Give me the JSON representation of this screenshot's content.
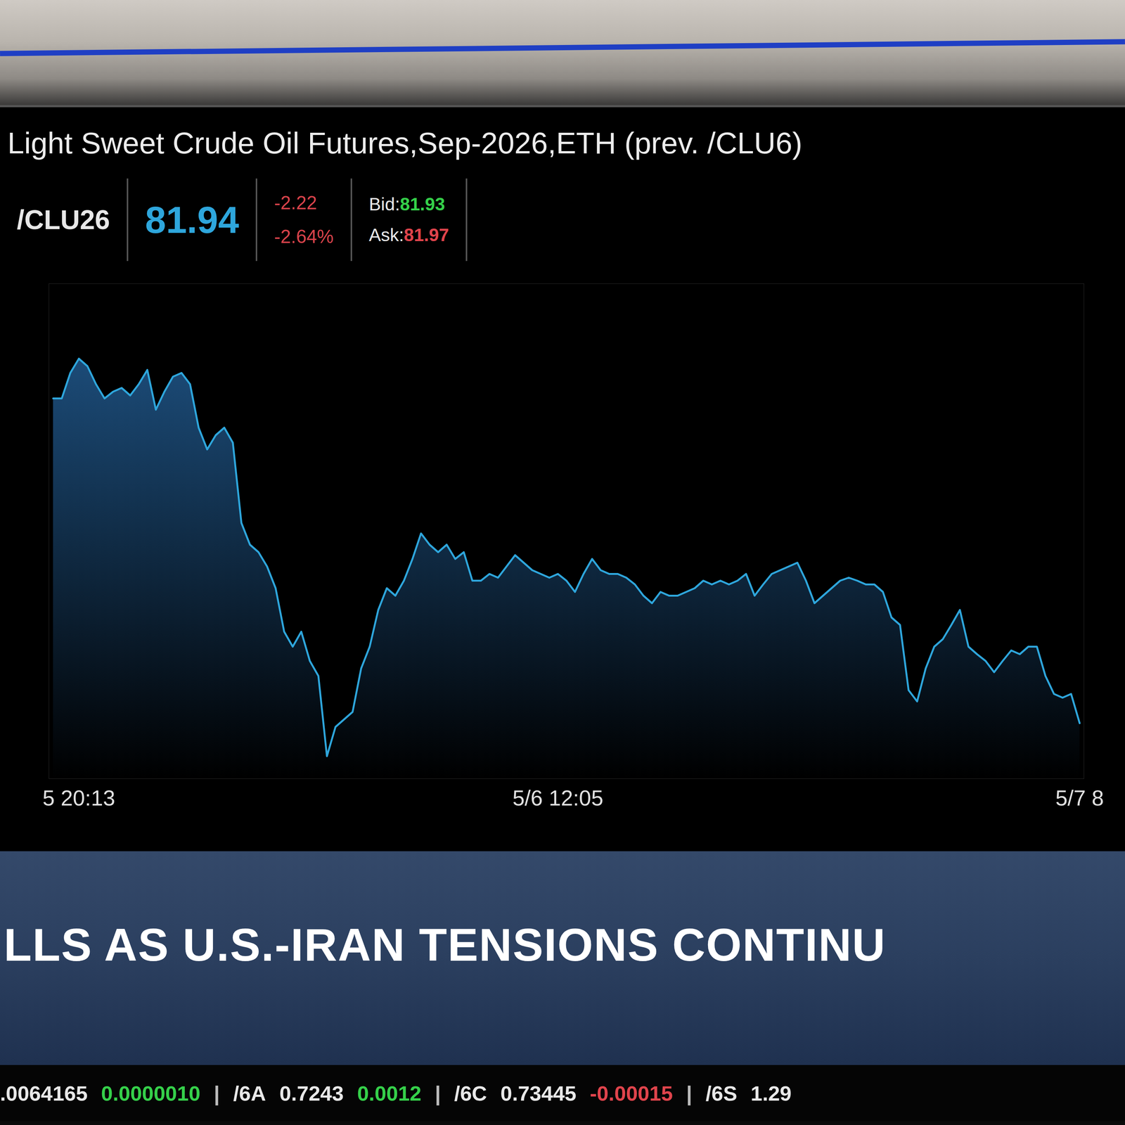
{
  "chart_data": {
    "type": "line",
    "title": "Light Sweet Crude Oil Futures,Sep-2026,ETH (prev. /CLU6)",
    "color": "#2ea6dc",
    "grid": false,
    "tick_labels": "x",
    "ylim": [
      81.2,
      87.8
    ],
    "categories": [
      null,
      null,
      null,
      "5 20:13",
      null,
      null,
      null,
      null,
      null,
      null,
      null,
      null,
      null,
      null,
      null,
      null,
      null,
      null,
      null,
      null,
      null,
      null,
      null,
      null,
      null,
      null,
      null,
      null,
      null,
      null,
      null,
      null,
      null,
      null,
      null,
      null,
      null,
      null,
      null,
      null,
      null,
      null,
      null,
      null,
      null,
      null,
      null,
      null,
      null,
      null,
      null,
      null,
      null,
      null,
      null,
      null,
      null,
      null,
      null,
      "5/6 12:05",
      null,
      null,
      null,
      null,
      null,
      null,
      null,
      null,
      null,
      null,
      null,
      null,
      null,
      null,
      null,
      null,
      null,
      null,
      null,
      null,
      null,
      null,
      null,
      null,
      null,
      null,
      null,
      null,
      null,
      null,
      null,
      null,
      null,
      null,
      null,
      null,
      null,
      null,
      null,
      null,
      null,
      null,
      null,
      null,
      null,
      null,
      null,
      null,
      null,
      null,
      null,
      null,
      null,
      null,
      null,
      null,
      null,
      null,
      null,
      null,
      "5/7 8"
    ],
    "values": [
      86.27,
      86.27,
      86.61,
      86.8,
      86.7,
      86.46,
      86.27,
      86.36,
      86.41,
      86.31,
      86.46,
      86.65,
      86.12,
      86.36,
      86.56,
      86.61,
      86.46,
      85.88,
      85.59,
      85.78,
      85.88,
      85.68,
      84.61,
      84.32,
      84.22,
      84.03,
      83.74,
      83.16,
      82.96,
      83.16,
      82.77,
      82.57,
      81.5,
      81.89,
      81.99,
      82.09,
      82.67,
      82.96,
      83.45,
      83.74,
      83.64,
      83.84,
      84.13,
      84.47,
      84.32,
      84.22,
      84.32,
      84.13,
      84.22,
      83.84,
      83.84,
      83.93,
      83.88,
      84.03,
      84.18,
      84.08,
      83.98,
      83.93,
      83.88,
      83.93,
      83.84,
      83.69,
      83.93,
      84.13,
      83.98,
      83.93,
      83.93,
      83.88,
      83.79,
      83.64,
      83.54,
      83.69,
      83.64,
      83.64,
      83.69,
      83.74,
      83.84,
      83.79,
      83.84,
      83.79,
      83.84,
      83.93,
      83.64,
      83.79,
      83.93,
      83.98,
      84.03,
      84.08,
      83.84,
      83.54,
      83.64,
      83.74,
      83.84,
      83.88,
      83.84,
      83.79,
      83.79,
      83.69,
      83.35,
      83.25,
      82.38,
      82.23,
      82.67,
      82.96,
      83.06,
      83.25,
      83.45,
      82.96,
      82.86,
      82.77,
      82.62,
      82.77,
      82.91,
      82.86,
      82.96,
      82.96,
      82.57,
      82.33,
      82.28,
      82.33,
      81.94
    ]
  },
  "quote": {
    "symbol": "/CLU26",
    "last": "81.94",
    "change": "-2.22",
    "change_pct": "-2.64%",
    "bid_label": "Bid:",
    "bid": "81.93",
    "ask_label": "Ask:",
    "ask": "81.97"
  },
  "banner": "LLS AS U.S.-IRAN TENSIONS CONTINU",
  "ticker": [
    {
      "text": ".0064165",
      "color": "#e8e8e8"
    },
    {
      "text": "0.0000010",
      "color": "#35d04a"
    },
    {
      "text": "|",
      "color": "#bbbbbb"
    },
    {
      "text": "/6A",
      "color": "#e8e8e8"
    },
    {
      "text": "0.7243",
      "color": "#e8e8e8"
    },
    {
      "text": "0.0012",
      "color": "#35d04a"
    },
    {
      "text": "|",
      "color": "#bbbbbb"
    },
    {
      "text": "/6C",
      "color": "#e8e8e8"
    },
    {
      "text": "0.73445",
      "color": "#e8e8e8"
    },
    {
      "text": "-0.00015",
      "color": "#e0444c"
    },
    {
      "text": "|",
      "color": "#bbbbbb"
    },
    {
      "text": "/6S",
      "color": "#e8e8e8"
    },
    {
      "text": "1.29",
      "color": "#e8e8e8"
    }
  ]
}
